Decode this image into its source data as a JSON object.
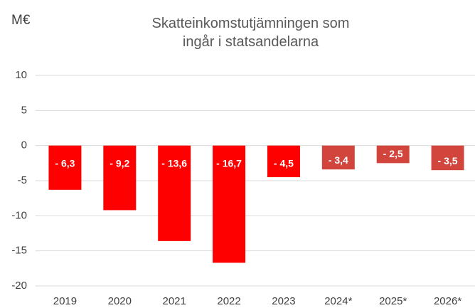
{
  "chart_data": {
    "type": "bar",
    "title": "Skatteinkomstutjämningen som ingår i statsandelarna",
    "y_label": "M€",
    "categories": [
      "2019",
      "2020",
      "2021",
      "2022",
      "2023",
      "2024*",
      "2025*",
      "2026*"
    ],
    "values": [
      -6.3,
      -9.2,
      -13.6,
      -16.7,
      -4.5,
      -3.4,
      -2.5,
      -3.5
    ],
    "value_labels": [
      "- 6,3",
      "- 9,2",
      "- 13,6",
      "- 16,7",
      "- 4,5",
      "- 3,4",
      "- 2,5",
      "- 3,5"
    ],
    "colors": [
      "#ff0000",
      "#ff0000",
      "#ff0000",
      "#ff0000",
      "#ff0000",
      "#d2453c",
      "#d2453c",
      "#d2453c"
    ],
    "ylim": [
      -20,
      10
    ],
    "yticks": [
      -20,
      -15,
      -10,
      -5,
      0,
      5,
      10
    ],
    "grid": true
  }
}
